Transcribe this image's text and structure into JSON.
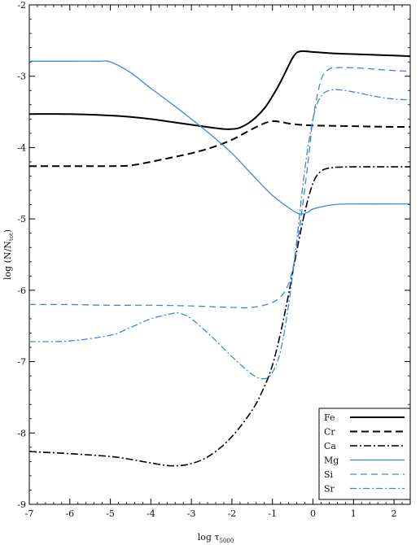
{
  "chart_data": {
    "type": "line",
    "xlabel_main": "log τ",
    "xlabel_sub": "5000",
    "ylabel_main": "log (N/N",
    "ylabel_sub": "tot",
    "ylabel_close": ")",
    "xlim": [
      -7,
      2.4
    ],
    "ylim": [
      -9,
      -2
    ],
    "xticks": [
      -7,
      -6,
      -5,
      -4,
      -3,
      -2,
      -1,
      0,
      1,
      2
    ],
    "yticks": [
      -9,
      -8,
      -7,
      -6,
      -5,
      -4,
      -3,
      -2
    ],
    "legend_position": "bottom-right",
    "grid": false,
    "series": [
      {
        "name": "Fe",
        "color": "#000000",
        "dash": "",
        "width": 2.0,
        "x": [
          -7,
          -6,
          -5,
          -4.5,
          -4,
          -3.5,
          -3,
          -2.5,
          -2.2,
          -2,
          -1.8,
          -1.5,
          -1.2,
          -1,
          -0.8,
          -0.6,
          -0.5,
          -0.4,
          -0.3,
          -0.2,
          0,
          0.5,
          1,
          1.5,
          2,
          2.4
        ],
        "y": [
          -3.53,
          -3.53,
          -3.55,
          -3.57,
          -3.6,
          -3.64,
          -3.68,
          -3.72,
          -3.74,
          -3.74,
          -3.72,
          -3.62,
          -3.45,
          -3.28,
          -3.08,
          -2.85,
          -2.74,
          -2.67,
          -2.65,
          -2.65,
          -2.66,
          -2.68,
          -2.69,
          -2.7,
          -2.71,
          -2.72
        ]
      },
      {
        "name": "Cr",
        "color": "#000000",
        "dash": "9,5",
        "width": 2.0,
        "x": [
          -7,
          -6,
          -5,
          -4.5,
          -4,
          -3.5,
          -3,
          -2.5,
          -2,
          -1.5,
          -1.2,
          -1,
          -0.8,
          -0.5,
          0,
          1,
          2,
          2.4
        ],
        "y": [
          -4.26,
          -4.26,
          -4.26,
          -4.25,
          -4.2,
          -4.14,
          -4.08,
          -4.0,
          -3.89,
          -3.74,
          -3.66,
          -3.63,
          -3.64,
          -3.67,
          -3.69,
          -3.7,
          -3.71,
          -3.71
        ]
      },
      {
        "name": "Ca",
        "color": "#000000",
        "dash": "9,3,2,3",
        "width": 1.6,
        "x": [
          -7,
          -6,
          -5,
          -4.5,
          -4,
          -3.5,
          -3,
          -2.5,
          -2,
          -1.5,
          -1.2,
          -1,
          -0.8,
          -0.6,
          -0.4,
          -0.2,
          0,
          0.2,
          0.5,
          1,
          1.5,
          2,
          2.4
        ],
        "y": [
          -8.26,
          -8.29,
          -8.33,
          -8.37,
          -8.42,
          -8.46,
          -8.43,
          -8.3,
          -8.05,
          -7.68,
          -7.35,
          -7.05,
          -6.6,
          -6.05,
          -5.45,
          -4.9,
          -4.5,
          -4.33,
          -4.28,
          -4.27,
          -4.27,
          -4.27,
          -4.27
        ]
      },
      {
        "name": "Mg",
        "color": "#3a86e8",
        "dash": "",
        "width": 1.3,
        "x": [
          -7,
          -6,
          -5.3,
          -5,
          -4.5,
          -4,
          -3.5,
          -3,
          -2.5,
          -2,
          -1.5,
          -1,
          -0.5,
          -0.3,
          -0.1,
          0,
          0.5,
          1,
          2,
          2.4
        ],
        "y": [
          -2.79,
          -2.79,
          -2.79,
          -2.8,
          -2.95,
          -3.17,
          -3.38,
          -3.6,
          -3.83,
          -4.08,
          -4.38,
          -4.67,
          -4.88,
          -4.93,
          -4.9,
          -4.86,
          -4.8,
          -4.79,
          -4.79,
          -4.79
        ]
      },
      {
        "name": "Si",
        "color": "#3a86e8",
        "dash": "8,5",
        "width": 1.3,
        "x": [
          -7,
          -6,
          -5,
          -4,
          -3,
          -2,
          -1.5,
          -1,
          -0.7,
          -0.5,
          -0.3,
          -0.1,
          0,
          0.2,
          0.4,
          0.6,
          1,
          1.5,
          2,
          2.4
        ],
        "y": [
          -6.2,
          -6.2,
          -6.21,
          -6.21,
          -6.22,
          -6.24,
          -6.24,
          -6.17,
          -6.02,
          -5.7,
          -5.0,
          -4.1,
          -3.6,
          -3.05,
          -2.9,
          -2.88,
          -2.88,
          -2.9,
          -2.92,
          -2.93
        ]
      },
      {
        "name": "Sr",
        "color": "#3a86e8",
        "dash": "8,3,2,3",
        "width": 1.3,
        "x": [
          -7,
          -6,
          -5,
          -4.5,
          -4,
          -3.5,
          -3.3,
          -3,
          -2.5,
          -2,
          -1.5,
          -1.2,
          -1,
          -0.8,
          -0.6,
          -0.4,
          -0.2,
          0,
          0.2,
          0.5,
          1,
          1.5,
          2,
          2.4
        ],
        "y": [
          -6.72,
          -6.71,
          -6.63,
          -6.52,
          -6.4,
          -6.33,
          -6.32,
          -6.4,
          -6.65,
          -6.93,
          -7.18,
          -7.24,
          -7.15,
          -6.85,
          -6.2,
          -5.3,
          -4.3,
          -3.6,
          -3.28,
          -3.19,
          -3.22,
          -3.28,
          -3.32,
          -3.33
        ]
      }
    ]
  }
}
